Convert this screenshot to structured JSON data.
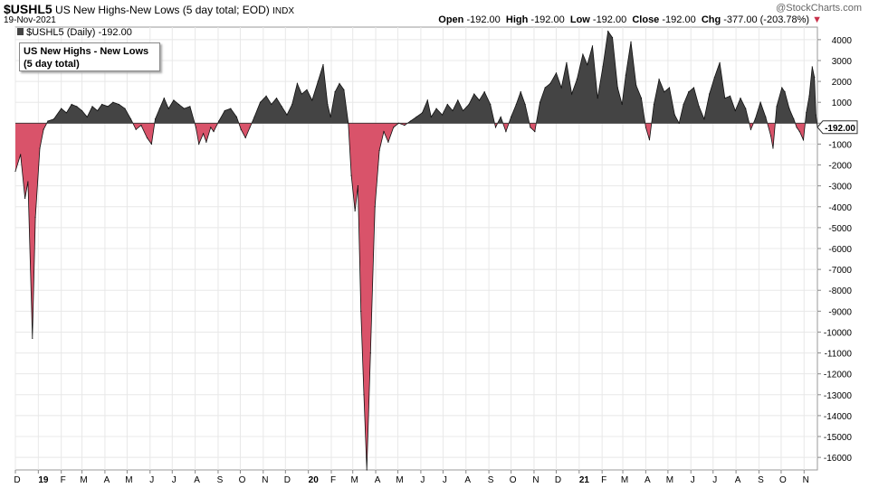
{
  "header": {
    "symbol": "$USHL5",
    "description": "US New Highs-New Lows (5 day total; EOD)",
    "exchange": "INDX",
    "date": "19-Nov-2021",
    "watermark": "@StockCharts.com",
    "open_label": "Open",
    "open_value": "-192.00",
    "high_label": "High",
    "high_value": "-192.00",
    "low_label": "Low",
    "low_value": "-192.00",
    "close_label": "Close",
    "close_value": "-192.00",
    "chg_label": "Chg",
    "chg_value": "-377.00 (-203.78%)"
  },
  "series_label": "$USHL5 (Daily) -192.00",
  "legend": {
    "line1": "US New Highs - New Lows",
    "line2": "(5 day total)"
  },
  "last_value_tag": "-192.00",
  "colors": {
    "positive": "#444444",
    "negative": "#d9536a",
    "grid": "#e8e8e8"
  },
  "chart_data": {
    "type": "area",
    "ylim": [
      -16600,
      4600
    ],
    "yticks": [
      4000,
      3000,
      2000,
      1000,
      0,
      -1000,
      -2000,
      -3000,
      -4000,
      -5000,
      -6000,
      -7000,
      -8000,
      -9000,
      -10000,
      -11000,
      -12000,
      -13000,
      -14000,
      -15000,
      -16000
    ],
    "ytick_labels": [
      "4000",
      "3000",
      "2000",
      "1000",
      "0",
      "-1000",
      "-2000",
      "-3000",
      "-4000",
      "-5000",
      "-6000",
      "-7000",
      "-8000",
      "-9000",
      "-10000",
      "-11000",
      "-12000",
      "-13000",
      "-14000",
      "-15000",
      "-16000"
    ],
    "x_start": "2018-12-01",
    "x_end": "2021-11-19",
    "xticks": [
      {
        "date": "2018-12-01",
        "label": "D"
      },
      {
        "date": "2019-01-01",
        "label": "19",
        "bold": true
      },
      {
        "date": "2019-02-01",
        "label": "F"
      },
      {
        "date": "2019-03-01",
        "label": "M"
      },
      {
        "date": "2019-04-01",
        "label": "A"
      },
      {
        "date": "2019-05-01",
        "label": "M"
      },
      {
        "date": "2019-06-01",
        "label": "J"
      },
      {
        "date": "2019-07-01",
        "label": "J"
      },
      {
        "date": "2019-08-01",
        "label": "A"
      },
      {
        "date": "2019-09-01",
        "label": "S"
      },
      {
        "date": "2019-10-01",
        "label": "O"
      },
      {
        "date": "2019-11-01",
        "label": "N"
      },
      {
        "date": "2019-12-01",
        "label": "D"
      },
      {
        "date": "2020-01-01",
        "label": "20",
        "bold": true
      },
      {
        "date": "2020-02-01",
        "label": "F"
      },
      {
        "date": "2020-03-01",
        "label": "M"
      },
      {
        "date": "2020-04-01",
        "label": "A"
      },
      {
        "date": "2020-05-01",
        "label": "M"
      },
      {
        "date": "2020-06-01",
        "label": "J"
      },
      {
        "date": "2020-07-01",
        "label": "J"
      },
      {
        "date": "2020-08-01",
        "label": "A"
      },
      {
        "date": "2020-09-01",
        "label": "S"
      },
      {
        "date": "2020-10-01",
        "label": "O"
      },
      {
        "date": "2020-11-01",
        "label": "N"
      },
      {
        "date": "2020-12-01",
        "label": "D"
      },
      {
        "date": "2021-01-01",
        "label": "21",
        "bold": true
      },
      {
        "date": "2021-02-01",
        "label": "F"
      },
      {
        "date": "2021-03-01",
        "label": "M"
      },
      {
        "date": "2021-04-01",
        "label": "A"
      },
      {
        "date": "2021-05-01",
        "label": "M"
      },
      {
        "date": "2021-06-01",
        "label": "J"
      },
      {
        "date": "2021-07-01",
        "label": "J"
      },
      {
        "date": "2021-08-01",
        "label": "A"
      },
      {
        "date": "2021-09-01",
        "label": "S"
      },
      {
        "date": "2021-10-01",
        "label": "O"
      },
      {
        "date": "2021-11-01",
        "label": "N"
      }
    ],
    "points": [
      [
        "2018-12-01",
        -2300
      ],
      [
        "2018-12-08",
        -1500
      ],
      [
        "2018-12-14",
        -3600
      ],
      [
        "2018-12-18",
        -2800
      ],
      [
        "2018-12-24",
        -10300
      ],
      [
        "2018-12-28",
        -4500
      ],
      [
        "2019-01-03",
        -1200
      ],
      [
        "2019-01-08",
        -300
      ],
      [
        "2019-01-14",
        100
      ],
      [
        "2019-01-22",
        200
      ],
      [
        "2019-02-01",
        700
      ],
      [
        "2019-02-08",
        500
      ],
      [
        "2019-02-15",
        900
      ],
      [
        "2019-02-22",
        800
      ],
      [
        "2019-03-01",
        600
      ],
      [
        "2019-03-08",
        300
      ],
      [
        "2019-03-15",
        800
      ],
      [
        "2019-03-22",
        600
      ],
      [
        "2019-03-28",
        900
      ],
      [
        "2019-04-05",
        800
      ],
      [
        "2019-04-12",
        1000
      ],
      [
        "2019-04-20",
        900
      ],
      [
        "2019-04-28",
        700
      ],
      [
        "2019-05-06",
        200
      ],
      [
        "2019-05-13",
        -300
      ],
      [
        "2019-05-20",
        -100
      ],
      [
        "2019-05-28",
        -700
      ],
      [
        "2019-06-03",
        -1000
      ],
      [
        "2019-06-08",
        200
      ],
      [
        "2019-06-14",
        700
      ],
      [
        "2019-06-20",
        1200
      ],
      [
        "2019-06-26",
        700
      ],
      [
        "2019-07-03",
        1100
      ],
      [
        "2019-07-10",
        900
      ],
      [
        "2019-07-17",
        700
      ],
      [
        "2019-07-25",
        800
      ],
      [
        "2019-08-02",
        -200
      ],
      [
        "2019-08-06",
        -1000
      ],
      [
        "2019-08-12",
        -500
      ],
      [
        "2019-08-16",
        -900
      ],
      [
        "2019-08-22",
        -200
      ],
      [
        "2019-08-26",
        -400
      ],
      [
        "2019-09-02",
        100
      ],
      [
        "2019-09-10",
        600
      ],
      [
        "2019-09-18",
        700
      ],
      [
        "2019-09-26",
        300
      ],
      [
        "2019-10-02",
        -300
      ],
      [
        "2019-10-08",
        -700
      ],
      [
        "2019-10-14",
        -200
      ],
      [
        "2019-10-20",
        300
      ],
      [
        "2019-10-28",
        1000
      ],
      [
        "2019-11-05",
        1300
      ],
      [
        "2019-11-12",
        900
      ],
      [
        "2019-11-19",
        1200
      ],
      [
        "2019-11-26",
        800
      ],
      [
        "2019-12-03",
        400
      ],
      [
        "2019-12-10",
        900
      ],
      [
        "2019-12-17",
        1900
      ],
      [
        "2019-12-23",
        1400
      ],
      [
        "2019-12-30",
        1600
      ],
      [
        "2020-01-06",
        1100
      ],
      [
        "2020-01-14",
        2000
      ],
      [
        "2020-01-21",
        2800
      ],
      [
        "2020-01-27",
        900
      ],
      [
        "2020-01-31",
        300
      ],
      [
        "2020-02-06",
        1500
      ],
      [
        "2020-02-12",
        1900
      ],
      [
        "2020-02-18",
        1600
      ],
      [
        "2020-02-24",
        0
      ],
      [
        "2020-02-28",
        -2500
      ],
      [
        "2020-03-04",
        -4200
      ],
      [
        "2020-03-08",
        -3000
      ],
      [
        "2020-03-12",
        -9000
      ],
      [
        "2020-03-16",
        -13000
      ],
      [
        "2020-03-20",
        -16600
      ],
      [
        "2020-03-25",
        -11000
      ],
      [
        "2020-03-31",
        -4000
      ],
      [
        "2020-04-06",
        -1300
      ],
      [
        "2020-04-12",
        -400
      ],
      [
        "2020-04-18",
        -900
      ],
      [
        "2020-04-25",
        -200
      ],
      [
        "2020-05-02",
        0
      ],
      [
        "2020-05-10",
        -100
      ],
      [
        "2020-05-18",
        100
      ],
      [
        "2020-05-26",
        300
      ],
      [
        "2020-06-03",
        500
      ],
      [
        "2020-06-10",
        1100
      ],
      [
        "2020-06-15",
        300
      ],
      [
        "2020-06-22",
        700
      ],
      [
        "2020-06-30",
        400
      ],
      [
        "2020-07-07",
        900
      ],
      [
        "2020-07-14",
        600
      ],
      [
        "2020-07-21",
        1100
      ],
      [
        "2020-07-28",
        600
      ],
      [
        "2020-08-05",
        900
      ],
      [
        "2020-08-12",
        1400
      ],
      [
        "2020-08-19",
        1100
      ],
      [
        "2020-08-26",
        1500
      ],
      [
        "2020-09-03",
        900
      ],
      [
        "2020-09-10",
        -200
      ],
      [
        "2020-09-17",
        300
      ],
      [
        "2020-09-24",
        -400
      ],
      [
        "2020-10-01",
        300
      ],
      [
        "2020-10-08",
        900
      ],
      [
        "2020-10-14",
        1500
      ],
      [
        "2020-10-20",
        900
      ],
      [
        "2020-10-27",
        -200
      ],
      [
        "2020-11-02",
        -400
      ],
      [
        "2020-11-09",
        1000
      ],
      [
        "2020-11-16",
        1700
      ],
      [
        "2020-11-23",
        1900
      ],
      [
        "2020-12-01",
        2400
      ],
      [
        "2020-12-08",
        1700
      ],
      [
        "2020-12-15",
        2900
      ],
      [
        "2020-12-22",
        1400
      ],
      [
        "2020-12-29",
        2100
      ],
      [
        "2021-01-06",
        3300
      ],
      [
        "2021-01-12",
        2800
      ],
      [
        "2021-01-19",
        3700
      ],
      [
        "2021-01-26",
        1200
      ],
      [
        "2021-02-02",
        2700
      ],
      [
        "2021-02-09",
        4400
      ],
      [
        "2021-02-15",
        4100
      ],
      [
        "2021-02-22",
        1700
      ],
      [
        "2021-02-28",
        900
      ],
      [
        "2021-03-05",
        2300
      ],
      [
        "2021-03-12",
        3900
      ],
      [
        "2021-03-19",
        1800
      ],
      [
        "2021-03-26",
        1200
      ],
      [
        "2021-04-01",
        -200
      ],
      [
        "2021-04-06",
        -800
      ],
      [
        "2021-04-12",
        900
      ],
      [
        "2021-04-19",
        2100
      ],
      [
        "2021-04-26",
        1500
      ],
      [
        "2021-05-03",
        1700
      ],
      [
        "2021-05-10",
        400
      ],
      [
        "2021-05-16",
        0
      ],
      [
        "2021-05-22",
        900
      ],
      [
        "2021-05-29",
        1500
      ],
      [
        "2021-06-05",
        1700
      ],
      [
        "2021-06-12",
        800
      ],
      [
        "2021-06-19",
        200
      ],
      [
        "2021-06-26",
        1400
      ],
      [
        "2021-07-03",
        2200
      ],
      [
        "2021-07-10",
        2900
      ],
      [
        "2021-07-17",
        1200
      ],
      [
        "2021-07-24",
        1300
      ],
      [
        "2021-07-31",
        600
      ],
      [
        "2021-08-07",
        1200
      ],
      [
        "2021-08-14",
        700
      ],
      [
        "2021-08-21",
        -300
      ],
      [
        "2021-08-27",
        200
      ],
      [
        "2021-09-03",
        1000
      ],
      [
        "2021-09-10",
        300
      ],
      [
        "2021-09-17",
        -600
      ],
      [
        "2021-09-20",
        -1200
      ],
      [
        "2021-09-25",
        800
      ],
      [
        "2021-10-02",
        1700
      ],
      [
        "2021-10-06",
        1500
      ],
      [
        "2021-10-12",
        700
      ],
      [
        "2021-10-18",
        200
      ],
      [
        "2021-10-22",
        -200
      ],
      [
        "2021-10-26",
        -400
      ],
      [
        "2021-10-31",
        -800
      ],
      [
        "2021-11-04",
        500
      ],
      [
        "2021-11-08",
        1300
      ],
      [
        "2021-11-12",
        2700
      ],
      [
        "2021-11-15",
        2200
      ],
      [
        "2021-11-17",
        400
      ],
      [
        "2021-11-19",
        -192
      ]
    ]
  }
}
